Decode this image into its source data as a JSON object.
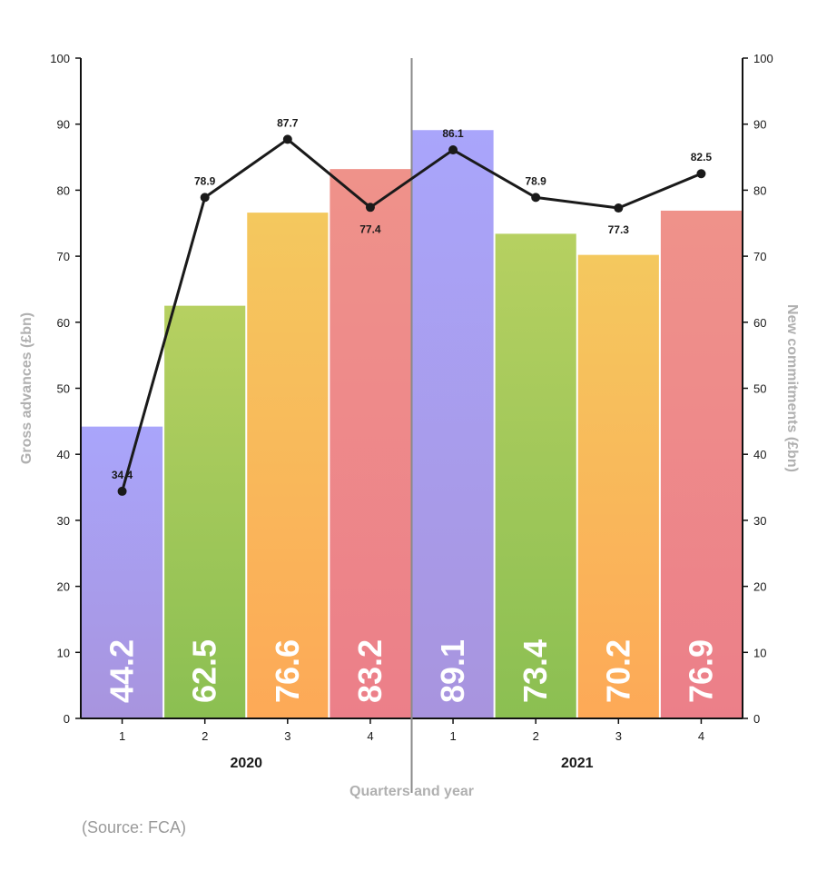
{
  "chart_data": {
    "type": "bar",
    "categories": [
      "1",
      "2",
      "3",
      "4",
      "1",
      "2",
      "3",
      "4"
    ],
    "groups": [
      {
        "label": "2020",
        "count": 4
      },
      {
        "label": "2021",
        "count": 4
      }
    ],
    "series": [
      {
        "values": [
          44.2,
          62.5,
          76.6,
          83.2,
          89.1,
          73.4,
          70.2,
          76.9
        ],
        "kind": "bar",
        "axis": "left"
      },
      {
        "values": [
          34.4,
          78.9,
          87.7,
          77.4,
          86.1,
          78.9,
          77.3,
          82.5
        ],
        "kind": "line",
        "axis": "right"
      }
    ],
    "xlabel": "Quarters and year",
    "ylabel": "Gross advances (£bn)",
    "y2label": "New commitments (£bn)",
    "ylim": [
      0,
      100
    ],
    "y2lim": [
      0,
      100
    ],
    "yticks": [
      0,
      10,
      20,
      30,
      40,
      50,
      60,
      70,
      80,
      90,
      100
    ],
    "grid": false,
    "bar_colors": [
      [
        "#a9a5fb",
        "#a894de"
      ],
      [
        "#b6d061",
        "#8bbf52"
      ],
      [
        "#f4c85e",
        "#fda957"
      ],
      [
        "#ef928a",
        "#ec7f89"
      ],
      [
        "#a9a5fb",
        "#a894de"
      ],
      [
        "#b6d061",
        "#8bbf52"
      ],
      [
        "#f4c85e",
        "#fda957"
      ],
      [
        "#ef928a",
        "#ec7f89"
      ]
    ],
    "line_color": "#1a1a1a"
  },
  "source": "(Source: FCA)"
}
